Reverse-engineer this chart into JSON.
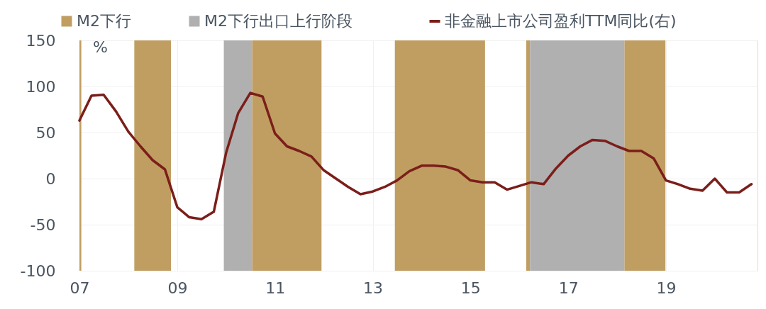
{
  "chart_data": {
    "type": "line",
    "ylabel": "%",
    "x": [
      "2007-01-01",
      "2007-04-01",
      "2007-07-01",
      "2007-10-01",
      "2008-01-01",
      "2008-04-01",
      "2008-07-01",
      "2008-10-01",
      "2009-01-01",
      "2009-04-01",
      "2009-07-01",
      "2009-10-01",
      "2010-01-01",
      "2010-04-01",
      "2010-07-01",
      "2010-10-01",
      "2011-01-01",
      "2011-04-01",
      "2011-07-01",
      "2011-10-01",
      "2012-01-01",
      "2012-04-01",
      "2012-07-01",
      "2012-10-01",
      "2013-01-01",
      "2013-04-01",
      "2013-07-01",
      "2013-10-01",
      "2014-01-01",
      "2014-04-01",
      "2014-07-01",
      "2014-10-01",
      "2015-01-01",
      "2015-04-01",
      "2015-07-01",
      "2015-10-01",
      "2016-01-01",
      "2016-04-01",
      "2016-07-01",
      "2016-10-01",
      "2017-01-01",
      "2017-04-01",
      "2017-07-01",
      "2017-10-01",
      "2018-01-01",
      "2018-04-01",
      "2018-07-01",
      "2018-10-01",
      "2019-01-01",
      "2019-04-01",
      "2019-07-01",
      "2019-10-01",
      "2020-01-01",
      "2020-04-01",
      "2020-07-01",
      "2020-10-01"
    ],
    "series": [
      {
        "name": "非金融上市公司盈利TTM同比(右)",
        "color": "#7b1e1a",
        "values": [
          63,
          90,
          91,
          73,
          51,
          35,
          20,
          10,
          -31,
          -42,
          -44,
          -36,
          28,
          71,
          93,
          89,
          49,
          35,
          30,
          24,
          9,
          0,
          -9,
          -17,
          -14,
          -9,
          -2,
          8,
          14,
          14,
          13,
          9,
          -2,
          -4,
          -4,
          -12,
          -8,
          -4,
          -6,
          11,
          25,
          35,
          42,
          41,
          35,
          30,
          30,
          22,
          -2,
          -6,
          -11,
          -13,
          0,
          -15,
          -15,
          -6
        ]
      }
    ],
    "bands": [
      {
        "axis": "x",
        "from": "2007-01-01",
        "to": "2007-01-15",
        "label": "M2下行",
        "color": "#c09e62"
      },
      {
        "axis": "x",
        "from": "2008-02-15",
        "to": "2008-11-15",
        "color": "#c09e62"
      },
      {
        "axis": "x",
        "from": "2009-12-15",
        "to": "2010-07-15",
        "label": "M2下行出口上行阶段",
        "color": "#b0b0b0"
      },
      {
        "axis": "x",
        "from": "2010-07-15",
        "to": "2011-12-15",
        "color": "#c09e62"
      },
      {
        "axis": "x",
        "from": "2013-06-15",
        "to": "2015-04-20",
        "color": "#c09e62"
      },
      {
        "axis": "x",
        "from": "2016-02-22",
        "to": "2016-03-22",
        "color": "#c09e62"
      },
      {
        "axis": "x",
        "from": "2016-03-22",
        "to": "2018-02-25",
        "color": "#b0b0b0"
      },
      {
        "axis": "x",
        "from": "2018-02-25",
        "to": "2018-12-28",
        "color": "#c09e62"
      }
    ],
    "xlim": [
      "2007-01-01",
      "2020-11-15"
    ],
    "xticks": [
      {
        "value": "2007-01-01",
        "label": "07"
      },
      {
        "value": "2009-01-01",
        "label": "09"
      },
      {
        "value": "2011-01-01",
        "label": "11"
      },
      {
        "value": "2013-01-01",
        "label": "13"
      },
      {
        "value": "2015-01-01",
        "label": "15"
      },
      {
        "value": "2017-01-01",
        "label": "17"
      },
      {
        "value": "2019-01-01",
        "label": "19"
      }
    ],
    "ylim": [
      -100,
      150
    ],
    "yticks": [
      -100,
      -50,
      0,
      50,
      100,
      150
    ],
    "grid": true,
    "legend": "top"
  }
}
